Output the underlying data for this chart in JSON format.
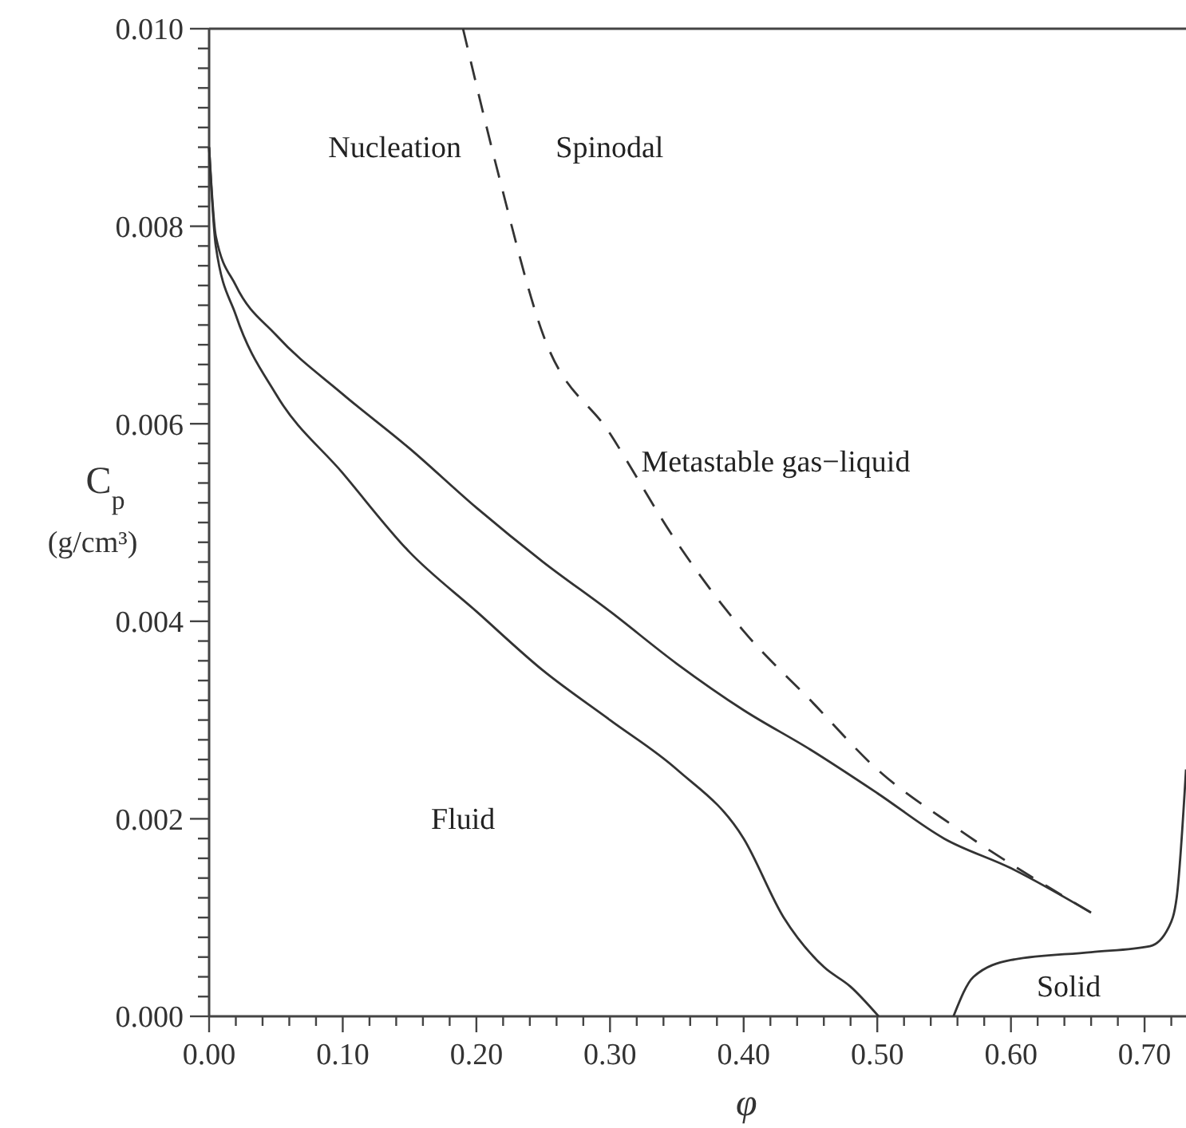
{
  "chart_data": {
    "type": "line",
    "xlabel": "φ",
    "ylabel": "C$_{p}$ (g/cm³)",
    "xlim": [
      0,
      0.731
    ],
    "ylim": [
      0,
      0.01
    ],
    "xticks": [
      {
        "value": 0,
        "label": "0.00"
      },
      {
        "value": 0.02,
        "label": null
      },
      {
        "value": 0.04,
        "label": null
      },
      {
        "value": 0.06,
        "label": null
      },
      {
        "value": 0.08,
        "label": null
      },
      {
        "value": 0.1,
        "label": "0.10"
      },
      {
        "value": 0.12,
        "label": null
      },
      {
        "value": 0.14,
        "label": null
      },
      {
        "value": 0.16,
        "label": null
      },
      {
        "value": 0.18,
        "label": null
      },
      {
        "value": 0.2,
        "label": "0.20"
      },
      {
        "value": 0.22,
        "label": null
      },
      {
        "value": 0.24,
        "label": null
      },
      {
        "value": 0.26,
        "label": null
      },
      {
        "value": 0.28,
        "label": null
      },
      {
        "value": 0.3,
        "label": "0.30"
      },
      {
        "value": 0.32,
        "label": null
      },
      {
        "value": 0.34,
        "label": null
      },
      {
        "value": 0.36,
        "label": null
      },
      {
        "value": 0.38,
        "label": null
      },
      {
        "value": 0.4,
        "label": "0.40"
      },
      {
        "value": 0.42,
        "label": null
      },
      {
        "value": 0.44,
        "label": null
      },
      {
        "value": 0.46,
        "label": null
      },
      {
        "value": 0.48,
        "label": null
      },
      {
        "value": 0.5,
        "label": "0.50"
      },
      {
        "value": 0.52,
        "label": null
      },
      {
        "value": 0.54,
        "label": null
      },
      {
        "value": 0.56,
        "label": null
      },
      {
        "value": 0.58,
        "label": null
      },
      {
        "value": 0.6,
        "label": "0.60"
      },
      {
        "value": 0.62,
        "label": null
      },
      {
        "value": 0.64,
        "label": null
      },
      {
        "value": 0.66,
        "label": null
      },
      {
        "value": 0.68,
        "label": null
      },
      {
        "value": 0.7,
        "label": "0.70"
      },
      {
        "value": 0.72,
        "label": null
      }
    ],
    "yticks": [
      {
        "value": 0,
        "label": "0.000"
      },
      {
        "value": 0.0002,
        "label": null
      },
      {
        "value": 0.0004,
        "label": null
      },
      {
        "value": 0.0006,
        "label": null
      },
      {
        "value": 0.0008,
        "label": null
      },
      {
        "value": 0.001,
        "label": null
      },
      {
        "value": 0.0012,
        "label": null
      },
      {
        "value": 0.0014,
        "label": null
      },
      {
        "value": 0.0016,
        "label": null
      },
      {
        "value": 0.0018,
        "label": null
      },
      {
        "value": 0.002,
        "label": "0.002"
      },
      {
        "value": 0.0022,
        "label": null
      },
      {
        "value": 0.0024,
        "label": null
      },
      {
        "value": 0.0026,
        "label": null
      },
      {
        "value": 0.0028,
        "label": null
      },
      {
        "value": 0.003,
        "label": null
      },
      {
        "value": 0.0032,
        "label": null
      },
      {
        "value": 0.0034,
        "label": null
      },
      {
        "value": 0.0036,
        "label": null
      },
      {
        "value": 0.0038,
        "label": null
      },
      {
        "value": 0.004,
        "label": "0.004"
      },
      {
        "value": 0.0042,
        "label": null
      },
      {
        "value": 0.0044,
        "label": null
      },
      {
        "value": 0.0046,
        "label": null
      },
      {
        "value": 0.0048,
        "label": null
      },
      {
        "value": 0.005,
        "label": null
      },
      {
        "value": 0.0052,
        "label": null
      },
      {
        "value": 0.0054,
        "label": null
      },
      {
        "value": 0.0056,
        "label": null
      },
      {
        "value": 0.0058,
        "label": null
      },
      {
        "value": 0.006,
        "label": "0.006"
      },
      {
        "value": 0.0062,
        "label": null
      },
      {
        "value": 0.0064,
        "label": null
      },
      {
        "value": 0.0066,
        "label": null
      },
      {
        "value": 0.0068,
        "label": null
      },
      {
        "value": 0.007,
        "label": null
      },
      {
        "value": 0.0072,
        "label": null
      },
      {
        "value": 0.0074,
        "label": null
      },
      {
        "value": 0.0076,
        "label": null
      },
      {
        "value": 0.0078,
        "label": null
      },
      {
        "value": 0.008,
        "label": "0.008"
      },
      {
        "value": 0.0082,
        "label": null
      },
      {
        "value": 0.0084,
        "label": null
      },
      {
        "value": 0.0086,
        "label": null
      },
      {
        "value": 0.0088,
        "label": null
      },
      {
        "value": 0.009,
        "label": null
      },
      {
        "value": 0.0092,
        "label": null
      },
      {
        "value": 0.0094,
        "label": null
      },
      {
        "value": 0.0096,
        "label": null
      },
      {
        "value": 0.0098,
        "label": null
      },
      {
        "value": 0.01,
        "label": "0.010"
      }
    ],
    "grid": false,
    "series": [
      {
        "color": "#333333",
        "line_style": "solid",
        "x": [
          0,
          0.005,
          0.02,
          0.05,
          0.1,
          0.15,
          0.2,
          0.25,
          0.3,
          0.35,
          0.4,
          0.45,
          0.5,
          0.55,
          0.6,
          0.66
        ],
        "values": [
          0.0088,
          0.0079,
          0.0074,
          0.0069,
          0.0063,
          0.00575,
          0.00515,
          0.0046,
          0.0041,
          0.00357,
          0.0031,
          0.0027,
          0.00226,
          0.0018,
          0.0015,
          0.00105
        ]
      },
      {
        "color": "#333333",
        "line_style": "solid",
        "x": [
          0,
          0.005,
          0.02,
          0.05,
          0.1,
          0.15,
          0.2,
          0.25,
          0.3,
          0.35,
          0.4,
          0.43,
          0.46,
          0.48,
          0.501
        ],
        "values": [
          0.0088,
          0.0078,
          0.0071,
          0.0063,
          0.0055,
          0.0047,
          0.0041,
          0.0035,
          0.003,
          0.0025,
          0.0018,
          0.001,
          0.0005,
          0.0003,
          0
        ]
      },
      {
        "color": "#333333",
        "line_style": "solid",
        "x": [
          0.557,
          0.572,
          0.6,
          0.66,
          0.704,
          0.718,
          0.724,
          0.731
        ],
        "values": [
          0,
          0.0004,
          0.00057,
          0.00065,
          0.00071,
          0.0009,
          0.0012,
          0.0025
        ]
      },
      {
        "color": "#333333",
        "line_style": "dashed",
        "x": [
          0.19,
          0.217,
          0.25,
          0.3,
          0.35,
          0.4,
          0.45,
          0.5,
          0.56,
          0.66
        ],
        "values": [
          0.01,
          0.0085,
          0.0069,
          0.0059,
          0.0048,
          0.0039,
          0.0032,
          0.0025,
          0.0019,
          0.00105
        ]
      }
    ],
    "annotations": [
      "Nucleation",
      "Spinodal",
      "Metastable gas−liquid",
      "Fluid",
      "Solid"
    ]
  }
}
